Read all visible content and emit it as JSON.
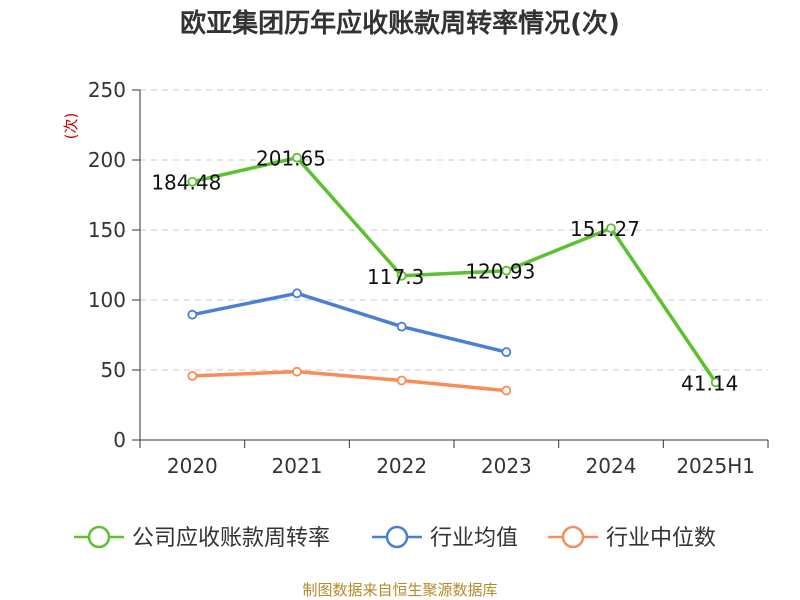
{
  "chart_data": {
    "type": "line",
    "title": "欧亚集团历年应收账款周转率情况(次)",
    "ylabel": "(次)",
    "xlabel": "",
    "categories": [
      "2020",
      "2021",
      "2022",
      "2023",
      "2024",
      "2025H1"
    ],
    "ylim": [
      0,
      250
    ],
    "yticks": [
      0,
      50,
      100,
      150,
      200,
      250
    ],
    "grid": true,
    "legend_position": "bottom",
    "series": [
      {
        "name": "公司应收账款周转率",
        "color": "#5cc12f",
        "values": [
          184.48,
          201.65,
          117.3,
          120.93,
          151.27,
          41.14
        ],
        "labels": [
          "184.48",
          "201.65",
          "117.3",
          "120.93",
          "151.27",
          "41.14"
        ]
      },
      {
        "name": "行业均值",
        "color": "#4a7fd6",
        "values": [
          89.5,
          104.8,
          81.0,
          62.8,
          null,
          null
        ]
      },
      {
        "name": "行业中位数",
        "color": "#f78d59",
        "values": [
          45.8,
          48.8,
          42.5,
          35.3,
          null,
          null
        ]
      }
    ]
  },
  "source": "制图数据来自恒生聚源数据库"
}
